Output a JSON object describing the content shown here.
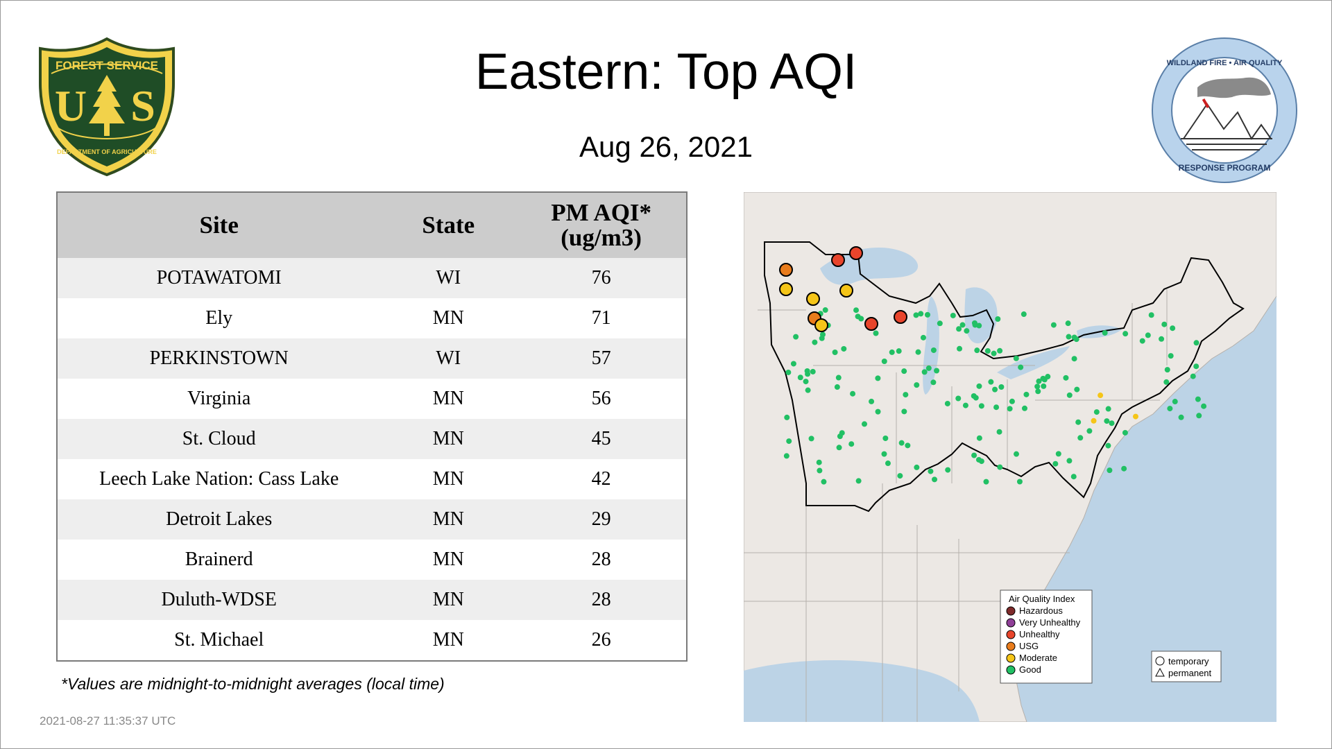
{
  "title": "Eastern: Top AQI",
  "date": "Aug 26, 2021",
  "logos": {
    "forest_service": {
      "top": "FOREST SERVICE",
      "letters_left": "U",
      "letters_right": "S",
      "bottom": "DEPARTMENT OF AGRICULTURE"
    },
    "wildland": {
      "top": "WILDLAND FIRE • AIR QUALITY",
      "bottom": "RESPONSE PROGRAM"
    }
  },
  "table": {
    "headers": {
      "site": "Site",
      "state": "State",
      "aqi_line1": "PM AQI*",
      "aqi_line2": "(ug/m3)"
    },
    "rows": [
      {
        "site": "POTAWATOMI",
        "state": "WI",
        "aqi": "76"
      },
      {
        "site": "Ely",
        "state": "MN",
        "aqi": "71"
      },
      {
        "site": "PERKINSTOWN",
        "state": "WI",
        "aqi": "57"
      },
      {
        "site": "Virginia",
        "state": "MN",
        "aqi": "56"
      },
      {
        "site": "St. Cloud",
        "state": "MN",
        "aqi": "45"
      },
      {
        "site": "Leech Lake Nation: Cass Lake",
        "state": "MN",
        "aqi": "42"
      },
      {
        "site": "Detroit Lakes",
        "state": "MN",
        "aqi": "29"
      },
      {
        "site": "Brainerd",
        "state": "MN",
        "aqi": "28"
      },
      {
        "site": "Duluth-WDSE",
        "state": "MN",
        "aqi": "28"
      },
      {
        "site": "St. Michael",
        "state": "MN",
        "aqi": "26"
      }
    ]
  },
  "footnote": "*Values are midnight-to-midnight averages (local time)",
  "timestamp": "2021-08-27 11:35:37 UTC",
  "map": {
    "legend": {
      "title": "Air Quality Index",
      "categories": [
        {
          "label": "Hazardous",
          "color": "#7e2a2a"
        },
        {
          "label": "Very Unhealthy",
          "color": "#8f3f97"
        },
        {
          "label": "Unhealthy",
          "color": "#e8452c"
        },
        {
          "label": "USG",
          "color": "#e97c1c"
        },
        {
          "label": "Moderate",
          "color": "#f5c518"
        },
        {
          "label": "Good",
          "color": "#21c064"
        }
      ],
      "shapes": {
        "temporary": "temporary",
        "permanent": "permanent"
      }
    },
    "colors": {
      "water": "#bcd3e6",
      "land": "#ece8e4",
      "border": "#000000",
      "state_line": "#b5b0ab"
    }
  }
}
